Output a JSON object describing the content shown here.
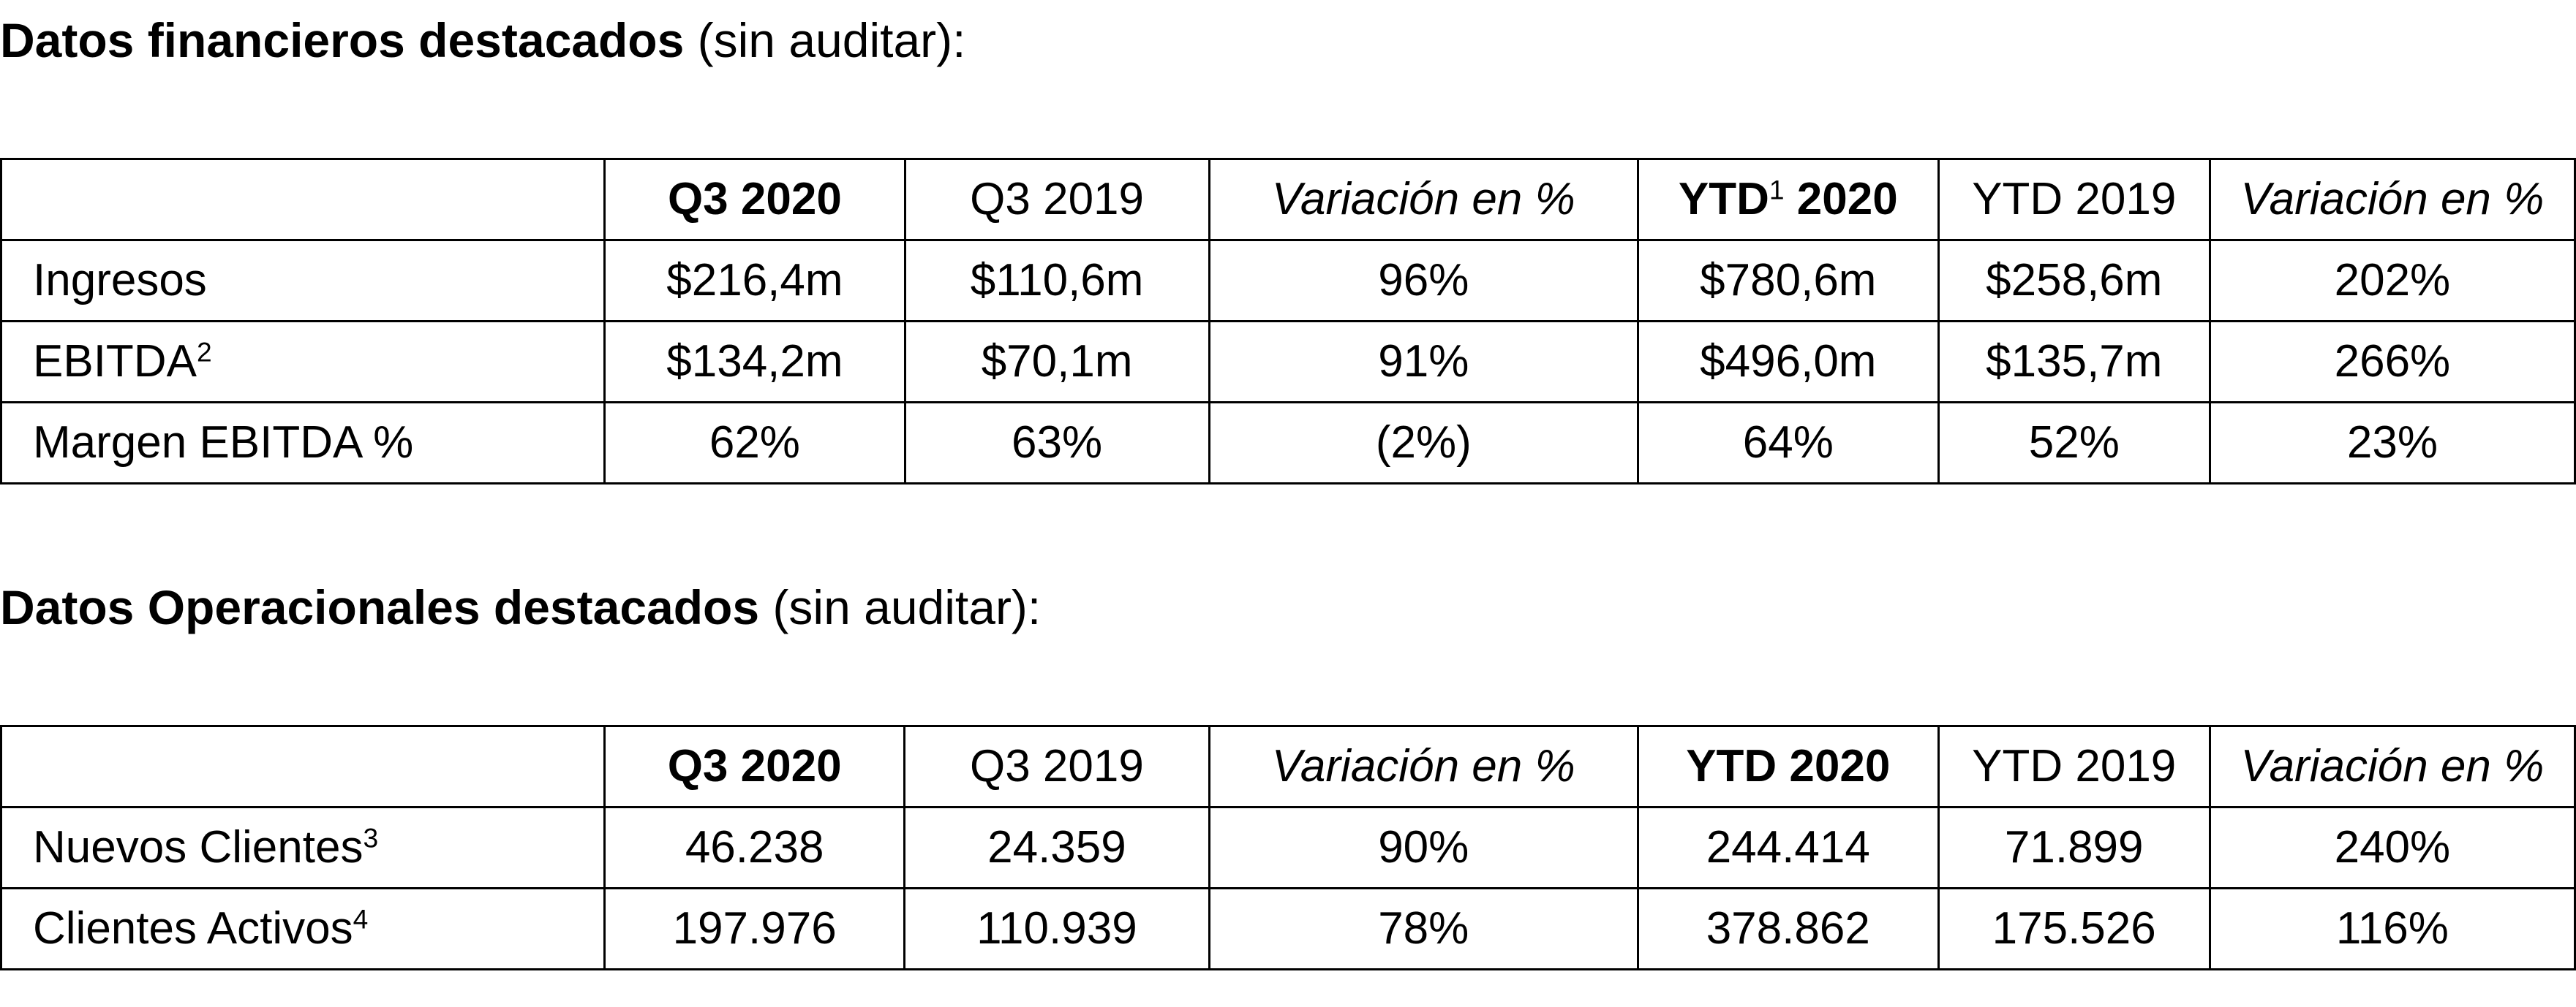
{
  "financial": {
    "title_bold": "Datos financieros destacados",
    "title_rest": " (sin auditar):",
    "header": {
      "label": "",
      "q3_2020": "Q3 2020",
      "q3_2019": "Q3 2019",
      "var_q": "Variación en %",
      "ytd_2020_pre": "YTD",
      "ytd_2020_sup": "1",
      "ytd_2020_post": " 2020",
      "ytd_2019": "YTD 2019",
      "var_ytd": "Variación en %"
    },
    "rows": [
      {
        "label": "Ingresos",
        "sup": "",
        "q3_2020": "$216,4m",
        "q3_2019": "$110,6m",
        "var_q": "96%",
        "ytd_2020": "$780,6m",
        "ytd_2019": "$258,6m",
        "var_ytd": "202%"
      },
      {
        "label": "EBITDA",
        "sup": "2",
        "q3_2020": "$134,2m",
        "q3_2019": "$70,1m",
        "var_q": "91%",
        "ytd_2020": "$496,0m",
        "ytd_2019": "$135,7m",
        "var_ytd": "266%"
      },
      {
        "label": "Margen EBITDA %",
        "sup": "",
        "q3_2020": "62%",
        "q3_2019": "63%",
        "var_q": "(2%)",
        "ytd_2020": "64%",
        "ytd_2019": "52%",
        "var_ytd": "23%"
      }
    ]
  },
  "operational": {
    "title_bold": "Datos Operacionales destacados",
    "title_rest": " (sin auditar):",
    "header": {
      "label": "",
      "q3_2020": "Q3 2020",
      "q3_2019": "Q3 2019",
      "var_q": "Variación en %",
      "ytd_2020": "YTD 2020",
      "ytd_2019": "YTD 2019",
      "var_ytd": "Variación en %"
    },
    "rows": [
      {
        "label": "Nuevos Clientes",
        "sup": "3",
        "q3_2020": "46.238",
        "q3_2019": "24.359",
        "var_q": "90%",
        "ytd_2020": "244.414",
        "ytd_2019": "71.899",
        "var_ytd": "240%"
      },
      {
        "label": "Clientes Activos",
        "sup": "4",
        "q3_2020": "197.976",
        "q3_2019": "110.939",
        "var_q": "78%",
        "ytd_2020": "378.862",
        "ytd_2019": "175.526",
        "var_ytd": "116%"
      }
    ]
  }
}
